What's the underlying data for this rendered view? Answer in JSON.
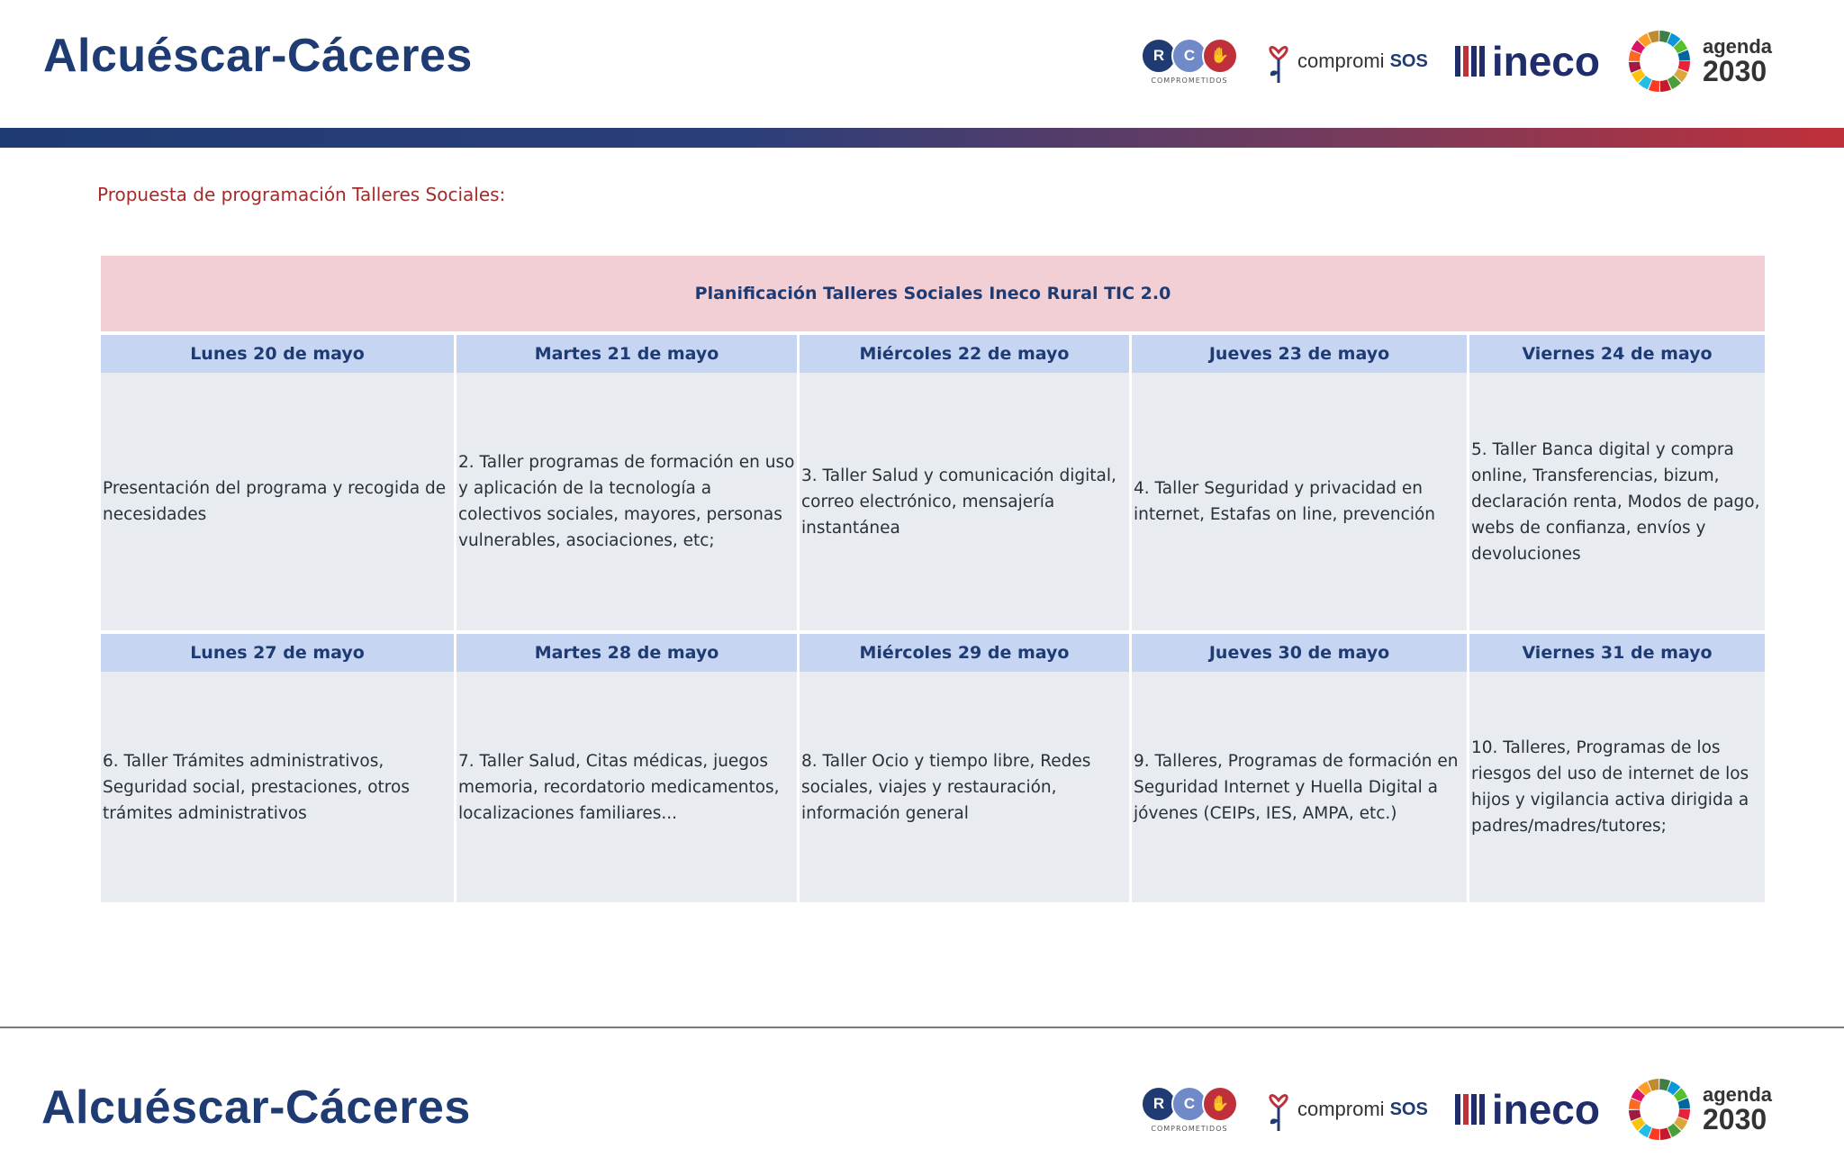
{
  "header": {
    "title": "Alcuéscar-Cáceres",
    "logos": {
      "rc_letters": [
        "R",
        "C",
        "✋"
      ],
      "rc_caption": "COMPROMETIDOS",
      "sos_prefix": "compromi",
      "sos_suffix": "SOS",
      "ineco": "ineco",
      "agenda_line1": "agenda",
      "agenda_line2": "2030"
    }
  },
  "subtitle": "Propuesta de programación Talleres Sociales:",
  "schedule": {
    "title": "Planificación Talleres Sociales Ineco Rural TIC 2.0",
    "weeks": [
      {
        "days": [
          {
            "day": "Lunes 20 de mayo",
            "text": "Presentación del programa y recogida de necesidades"
          },
          {
            "day": "Martes 21 de mayo",
            "text": "2. Taller programas de formación en uso y aplicación de la tecnología a colectivos sociales, mayores, personas vulnerables, asociaciones, etc;"
          },
          {
            "day": "Miércoles 22 de mayo",
            "text": "3. Taller Salud y comunicación digital, correo electrónico, mensajería instantánea"
          },
          {
            "day": "Jueves 23 de mayo",
            "text": "4. Taller Seguridad y privacidad en internet, Estafas on line, prevención"
          },
          {
            "day": "Viernes 24 de mayo",
            "text": "5. Taller Banca digital y compra online, Transferencias, bizum, declaración renta, Modos de pago, webs de confianza, envíos y devoluciones"
          }
        ]
      },
      {
        "days": [
          {
            "day": "Lunes 27 de mayo",
            "text": "6. Taller Trámites administrativos, Seguridad social, prestaciones, otros trámites administrativos"
          },
          {
            "day": "Martes 28 de mayo",
            "text": "7. Taller Salud, Citas médicas, juegos memoria, recordatorio medicamentos, localizaciones familiares..."
          },
          {
            "day": "Miércoles 29 de mayo",
            "text": "8. Taller Ocio y tiempo libre, Redes sociales, viajes y restauración, información general"
          },
          {
            "day": "Jueves 30 de mayo",
            "text": "9. Talleres, Programas de formación en Seguridad Internet y Huella Digital a jóvenes (CEIPs, IES, AMPA, etc.)"
          },
          {
            "day": "Viernes 31 de mayo",
            "text": "10. Talleres, Programas de los riesgos del uso de internet de los hijos y vigilancia activa dirigida a padres/madres/tutores;"
          }
        ]
      }
    ]
  },
  "footer": {
    "title": "Alcuéscar-Cáceres"
  },
  "colors": {
    "title_blue": "#1f3b73",
    "accent_red": "#c0303a",
    "header_pink": "#f2cfd4",
    "day_head_blue": "#c6d6f2",
    "cell_gray": "#e8ebf0"
  }
}
